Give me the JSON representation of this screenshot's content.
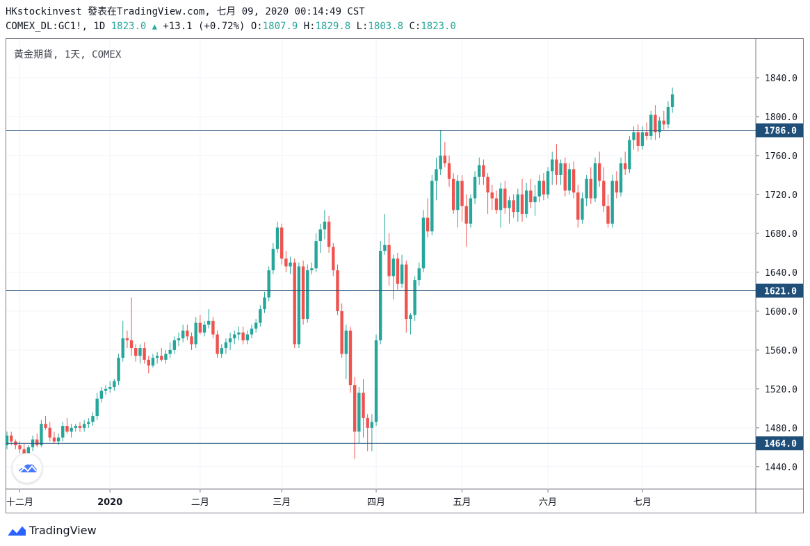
{
  "header": {
    "line1": "HKstockinvest 發表在TradingView.com, 七月 09, 2020 00:14:49 CST",
    "symbol": "COMEX_DL:GC1!, 1D",
    "last": "1823.0",
    "change": "+13.1 (+0.72%)",
    "o_label": "O:",
    "o_value": "1807.9",
    "h_label": "H:",
    "h_value": "1829.8",
    "l_label": "L:",
    "l_value": "1803.8",
    "c_label": "C:",
    "c_value": "1823.0"
  },
  "instrument": "黃金期貨, 1天, COMEX",
  "footer": {
    "brand": "TradingView"
  },
  "colors": {
    "up": "#26a69a",
    "down": "#ef5350",
    "hline": "#1f4e79",
    "label_bg": "#1f4e79"
  },
  "chart_data": {
    "type": "candlestick",
    "ylim": [
      1417,
      1880
    ],
    "yticks": [
      "1840.0",
      "1800.0",
      "1760.0",
      "1720.0",
      "1680.0",
      "1640.0",
      "1600.0",
      "1560.0",
      "1520.0",
      "1480.0",
      "1440.0"
    ],
    "xticks": [
      {
        "label": "十二月",
        "index": 3,
        "bold": false
      },
      {
        "label": "2020",
        "index": 24,
        "bold": true
      },
      {
        "label": "二月",
        "index": 45,
        "bold": false
      },
      {
        "label": "三月",
        "index": 64,
        "bold": false
      },
      {
        "label": "四月",
        "index": 86,
        "bold": false
      },
      {
        "label": "五月",
        "index": 106,
        "bold": false
      },
      {
        "label": "六月",
        "index": 126,
        "bold": false
      },
      {
        "label": "七月",
        "index": 148,
        "bold": false
      }
    ],
    "hlines": [
      {
        "value": 1786.0,
        "label": "1786.0"
      },
      {
        "value": 1621.0,
        "label": "1621.0"
      },
      {
        "value": 1464.0,
        "label": "1464.0"
      }
    ],
    "candles": [
      [
        1462,
        1476,
        1458,
        1472
      ],
      [
        1472,
        1476,
        1462,
        1466
      ],
      [
        1466,
        1468,
        1458,
        1462
      ],
      [
        1462,
        1466,
        1454,
        1458
      ],
      [
        1458,
        1464,
        1447,
        1452
      ],
      [
        1452,
        1462,
        1450,
        1460
      ],
      [
        1460,
        1472,
        1456,
        1468
      ],
      [
        1468,
        1474,
        1460,
        1462
      ],
      [
        1462,
        1488,
        1460,
        1484
      ],
      [
        1484,
        1492,
        1478,
        1480
      ],
      [
        1480,
        1486,
        1466,
        1470
      ],
      [
        1470,
        1476,
        1464,
        1466
      ],
      [
        1466,
        1474,
        1462,
        1470
      ],
      [
        1470,
        1486,
        1466,
        1482
      ],
      [
        1482,
        1490,
        1474,
        1476
      ],
      [
        1476,
        1484,
        1470,
        1480
      ],
      [
        1480,
        1484,
        1476,
        1482
      ],
      [
        1482,
        1486,
        1476,
        1480
      ],
      [
        1480,
        1488,
        1476,
        1484
      ],
      [
        1484,
        1490,
        1480,
        1486
      ],
      [
        1486,
        1496,
        1482,
        1492
      ],
      [
        1492,
        1516,
        1488,
        1510
      ],
      [
        1510,
        1522,
        1506,
        1518
      ],
      [
        1518,
        1524,
        1514,
        1520
      ],
      [
        1520,
        1528,
        1516,
        1522
      ],
      [
        1522,
        1530,
        1518,
        1528
      ],
      [
        1528,
        1556,
        1524,
        1552
      ],
      [
        1552,
        1590,
        1548,
        1572
      ],
      [
        1572,
        1580,
        1562,
        1570
      ],
      [
        1570,
        1614,
        1554,
        1562
      ],
      [
        1562,
        1566,
        1548,
        1554
      ],
      [
        1554,
        1566,
        1546,
        1562
      ],
      [
        1562,
        1568,
        1546,
        1550
      ],
      [
        1550,
        1554,
        1536,
        1544
      ],
      [
        1544,
        1556,
        1542,
        1552
      ],
      [
        1552,
        1558,
        1546,
        1554
      ],
      [
        1554,
        1562,
        1548,
        1550
      ],
      [
        1550,
        1560,
        1546,
        1556
      ],
      [
        1556,
        1568,
        1552,
        1560
      ],
      [
        1560,
        1574,
        1556,
        1570
      ],
      [
        1570,
        1578,
        1564,
        1572
      ],
      [
        1572,
        1586,
        1568,
        1580
      ],
      [
        1580,
        1586,
        1570,
        1574
      ],
      [
        1574,
        1578,
        1560,
        1566
      ],
      [
        1566,
        1594,
        1562,
        1588
      ],
      [
        1588,
        1596,
        1576,
        1578
      ],
      [
        1578,
        1590,
        1574,
        1586
      ],
      [
        1586,
        1602,
        1582,
        1590
      ],
      [
        1590,
        1594,
        1572,
        1576
      ],
      [
        1576,
        1580,
        1552,
        1556
      ],
      [
        1556,
        1566,
        1552,
        1562
      ],
      [
        1562,
        1572,
        1556,
        1568
      ],
      [
        1568,
        1578,
        1560,
        1572
      ],
      [
        1572,
        1580,
        1566,
        1576
      ],
      [
        1576,
        1584,
        1570,
        1578
      ],
      [
        1578,
        1584,
        1566,
        1570
      ],
      [
        1570,
        1580,
        1566,
        1576
      ],
      [
        1576,
        1586,
        1572,
        1582
      ],
      [
        1582,
        1592,
        1578,
        1588
      ],
      [
        1588,
        1606,
        1584,
        1602
      ],
      [
        1602,
        1620,
        1598,
        1614
      ],
      [
        1614,
        1646,
        1610,
        1642
      ],
      [
        1642,
        1670,
        1638,
        1664
      ],
      [
        1664,
        1692,
        1660,
        1686
      ],
      [
        1686,
        1690,
        1648,
        1654
      ],
      [
        1654,
        1662,
        1640,
        1646
      ],
      [
        1646,
        1656,
        1638,
        1650
      ],
      [
        1650,
        1654,
        1562,
        1566
      ],
      [
        1566,
        1650,
        1562,
        1646
      ],
      [
        1646,
        1652,
        1586,
        1592
      ],
      [
        1592,
        1648,
        1588,
        1642
      ],
      [
        1642,
        1650,
        1638,
        1644
      ],
      [
        1644,
        1680,
        1640,
        1672
      ],
      [
        1672,
        1690,
        1660,
        1684
      ],
      [
        1684,
        1704,
        1674,
        1692
      ],
      [
        1692,
        1698,
        1660,
        1666
      ],
      [
        1666,
        1670,
        1636,
        1642
      ],
      [
        1642,
        1648,
        1596,
        1600
      ],
      [
        1600,
        1608,
        1552,
        1556
      ],
      [
        1556,
        1586,
        1530,
        1580
      ],
      [
        1580,
        1584,
        1516,
        1524
      ],
      [
        1524,
        1532,
        1448,
        1476
      ],
      [
        1476,
        1522,
        1464,
        1516
      ],
      [
        1516,
        1530,
        1470,
        1490
      ],
      [
        1490,
        1494,
        1456,
        1480
      ],
      [
        1480,
        1494,
        1456,
        1486
      ],
      [
        1486,
        1576,
        1482,
        1570
      ],
      [
        1570,
        1672,
        1566,
        1662
      ],
      [
        1662,
        1700,
        1658,
        1668
      ],
      [
        1668,
        1680,
        1626,
        1636
      ],
      [
        1636,
        1658,
        1612,
        1654
      ],
      [
        1654,
        1660,
        1622,
        1628
      ],
      [
        1628,
        1658,
        1624,
        1648
      ],
      [
        1648,
        1652,
        1578,
        1592
      ],
      [
        1592,
        1598,
        1576,
        1596
      ],
      [
        1596,
        1636,
        1590,
        1632
      ],
      [
        1632,
        1650,
        1626,
        1644
      ],
      [
        1644,
        1704,
        1640,
        1696
      ],
      [
        1696,
        1716,
        1676,
        1682
      ],
      [
        1682,
        1740,
        1678,
        1734
      ],
      [
        1734,
        1758,
        1714,
        1746
      ],
      [
        1746,
        1786,
        1740,
        1760
      ],
      [
        1760,
        1774,
        1748,
        1752
      ],
      [
        1752,
        1760,
        1728,
        1736
      ],
      [
        1736,
        1742,
        1700,
        1704
      ],
      [
        1704,
        1740,
        1686,
        1734
      ],
      [
        1734,
        1740,
        1692,
        1708
      ],
      [
        1708,
        1720,
        1666,
        1690
      ],
      [
        1690,
        1720,
        1686,
        1716
      ],
      [
        1716,
        1744,
        1710,
        1738
      ],
      [
        1738,
        1758,
        1730,
        1750
      ],
      [
        1750,
        1756,
        1730,
        1738
      ],
      [
        1738,
        1742,
        1700,
        1722
      ],
      [
        1722,
        1730,
        1704,
        1716
      ],
      [
        1716,
        1724,
        1700,
        1704
      ],
      [
        1704,
        1732,
        1686,
        1726
      ],
      [
        1726,
        1734,
        1700,
        1706
      ],
      [
        1706,
        1718,
        1690,
        1714
      ],
      [
        1714,
        1720,
        1696,
        1702
      ],
      [
        1702,
        1726,
        1692,
        1720
      ],
      [
        1720,
        1736,
        1692,
        1700
      ],
      [
        1700,
        1732,
        1696,
        1724
      ],
      [
        1724,
        1736,
        1706,
        1712
      ],
      [
        1712,
        1730,
        1698,
        1718
      ],
      [
        1718,
        1740,
        1712,
        1734
      ],
      [
        1734,
        1742,
        1714,
        1720
      ],
      [
        1720,
        1748,
        1716,
        1744
      ],
      [
        1744,
        1764,
        1730,
        1756
      ],
      [
        1756,
        1772,
        1730,
        1740
      ],
      [
        1740,
        1756,
        1730,
        1752
      ],
      [
        1752,
        1758,
        1718,
        1724
      ],
      [
        1724,
        1752,
        1720,
        1746
      ],
      [
        1746,
        1754,
        1716,
        1722
      ],
      [
        1722,
        1730,
        1686,
        1694
      ],
      [
        1694,
        1722,
        1690,
        1716
      ],
      [
        1716,
        1740,
        1708,
        1736
      ],
      [
        1736,
        1748,
        1710,
        1716
      ],
      [
        1716,
        1758,
        1712,
        1752
      ],
      [
        1752,
        1764,
        1728,
        1734
      ],
      [
        1734,
        1748,
        1702,
        1708
      ],
      [
        1708,
        1720,
        1686,
        1690
      ],
      [
        1690,
        1740,
        1686,
        1734
      ],
      [
        1734,
        1744,
        1716,
        1722
      ],
      [
        1722,
        1758,
        1718,
        1752
      ],
      [
        1752,
        1764,
        1740,
        1746
      ],
      [
        1746,
        1780,
        1742,
        1776
      ],
      [
        1776,
        1790,
        1766,
        1784
      ],
      [
        1784,
        1792,
        1764,
        1770
      ],
      [
        1770,
        1790,
        1766,
        1784
      ],
      [
        1784,
        1794,
        1776,
        1780
      ],
      [
        1780,
        1806,
        1776,
        1802
      ],
      [
        1802,
        1812,
        1776,
        1784
      ],
      [
        1784,
        1800,
        1778,
        1796
      ],
      [
        1796,
        1806,
        1786,
        1792
      ],
      [
        1792,
        1816,
        1788,
        1810
      ],
      [
        1810,
        1830,
        1804,
        1823
      ]
    ]
  }
}
